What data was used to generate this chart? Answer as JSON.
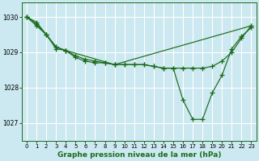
{
  "title": "Graphe pression niveau de la mer (hPa)",
  "bg_color": "#cce8f0",
  "grid_color": "#ffffff",
  "line_color": "#1a6b1a",
  "xlim": [
    -0.5,
    23.5
  ],
  "ylim": [
    1026.5,
    1030.4
  ],
  "yticks": [
    1027,
    1028,
    1029,
    1030
  ],
  "xticks": [
    0,
    1,
    2,
    3,
    4,
    5,
    6,
    7,
    8,
    9,
    10,
    11,
    12,
    13,
    14,
    15,
    16,
    17,
    18,
    19,
    20,
    21,
    22,
    23
  ],
  "line1_x": [
    0,
    1,
    2,
    3,
    4,
    9,
    10,
    11,
    12,
    13,
    14,
    15,
    16,
    17,
    18,
    19,
    20,
    21,
    22,
    23
  ],
  "line1_y": [
    1030.0,
    1029.75,
    1029.5,
    1029.15,
    1029.05,
    1028.65,
    1028.65,
    1028.65,
    1028.65,
    1028.6,
    1028.55,
    1028.55,
    1027.65,
    1027.1,
    1027.1,
    1027.85,
    1028.35,
    1029.1,
    1029.45,
    1029.7
  ],
  "line2_x": [
    0,
    1,
    2,
    3,
    4,
    5,
    6,
    7,
    8,
    9,
    10,
    11,
    12,
    13,
    14,
    15,
    16,
    17,
    18,
    19,
    20,
    21,
    22,
    23
  ],
  "line2_y": [
    1030.0,
    1029.8,
    1029.5,
    1029.1,
    1029.05,
    1028.85,
    1028.75,
    1028.7,
    1028.7,
    1028.65,
    1028.65,
    1028.65,
    1028.65,
    1028.6,
    1028.55,
    1028.55,
    1028.55,
    1028.55,
    1028.55,
    1028.6,
    1028.75,
    1029.0,
    1029.4,
    1029.75
  ],
  "line3_x": [
    0,
    1,
    2,
    3,
    4,
    5,
    6,
    7,
    8,
    9,
    23
  ],
  "line3_y": [
    1030.0,
    1029.85,
    1029.5,
    1029.15,
    1029.05,
    1028.9,
    1028.8,
    1028.75,
    1028.7,
    1028.65,
    1029.75
  ]
}
